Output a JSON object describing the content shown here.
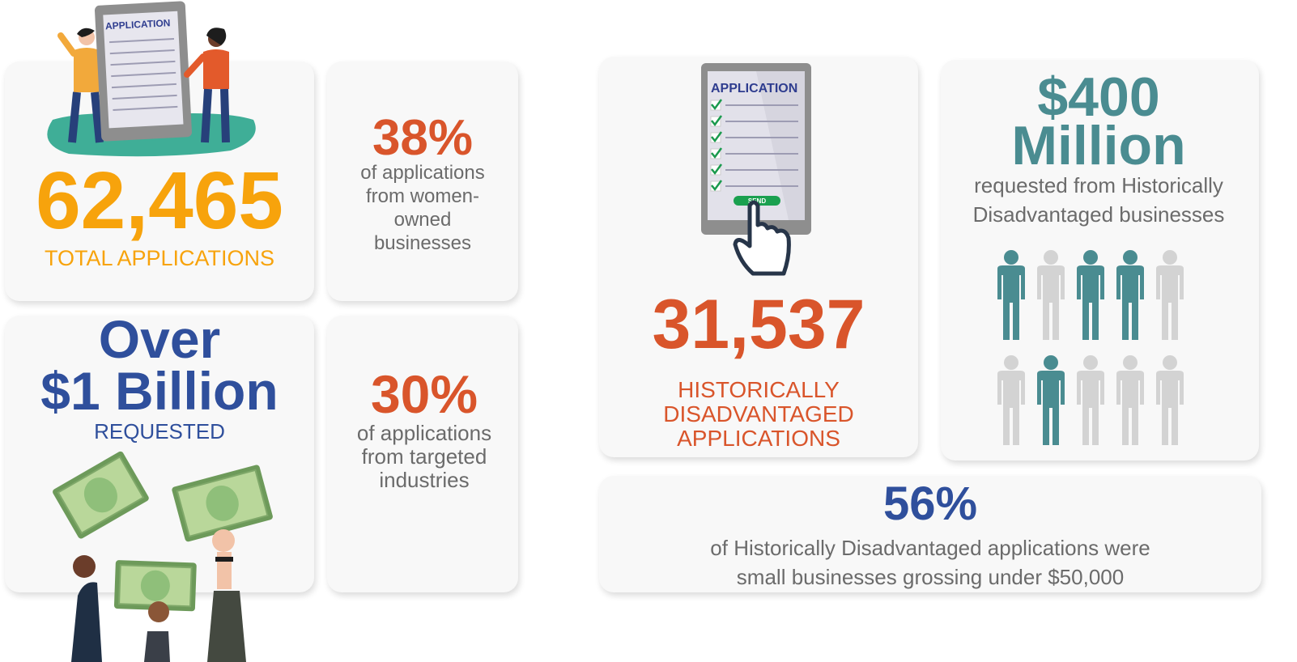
{
  "total": {
    "number": "62,465",
    "label": "TOTAL APPLICATIONS"
  },
  "women": {
    "percent": "38%",
    "line1": "of applications",
    "line2": "from women-",
    "line3": "owned",
    "line4": "businesses"
  },
  "requested": {
    "line1": "Over",
    "line2": "$1 Billion",
    "label": "REQUESTED"
  },
  "targeted": {
    "percent": "30%",
    "line1": "of applications",
    "line2": "from targeted",
    "line3": "industries"
  },
  "historic": {
    "number": "31,537",
    "line1": "HISTORICALLY",
    "line2": "DISADVANTAGED",
    "line3": "APPLICATIONS"
  },
  "million": {
    "line1": "$400",
    "line2": "Million",
    "desc1": "requested from Historically",
    "desc2": "Disadvantaged businesses"
  },
  "small": {
    "percent": "56%",
    "desc1": "of Historically Disadvantaged applications were",
    "desc2": "small businesses grossing under $50,000"
  },
  "tablet": {
    "title": "APPLICATION",
    "send": "SEND"
  },
  "people_icons": {
    "filled": 4,
    "total": 10
  },
  "colors": {
    "orange": "#f7a30c",
    "rust": "#d9552b",
    "blue": "#2f4f9c",
    "teal": "#4a8c91",
    "gray": "#6b6b6b",
    "light_gray": "#d3d3d3"
  }
}
